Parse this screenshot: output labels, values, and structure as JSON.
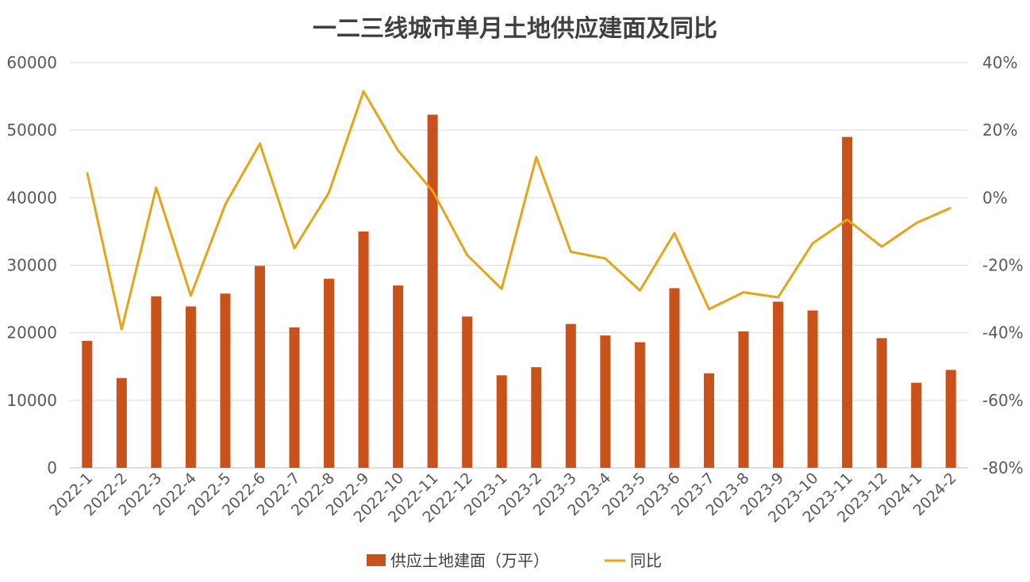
{
  "chart_data": {
    "type": "bar",
    "title": "一二三线城市单月土地供应建面及同比",
    "categories": [
      "2022-1",
      "2022-2",
      "2022-3",
      "2022-4",
      "2022-5",
      "2022-6",
      "2022-7",
      "2022-8",
      "2022-9",
      "2022-10",
      "2022-11",
      "2022-12",
      "2023-1",
      "2023-2",
      "2023-3",
      "2023-4",
      "2023-5",
      "2023-6",
      "2023-7",
      "2023-8",
      "2023-9",
      "2023-10",
      "2023-11",
      "2023-12",
      "2024-1",
      "2024-2"
    ],
    "left_axis": {
      "ylim": [
        0,
        60000
      ],
      "ticks": [
        "0",
        "10000",
        "20000",
        "30000",
        "40000",
        "50000",
        "60000"
      ]
    },
    "right_axis": {
      "ylim": [
        -80,
        40
      ],
      "ticks": [
        "-80%",
        "-60%",
        "-40%",
        "-20%",
        "0%",
        "20%",
        "40%"
      ]
    },
    "series": [
      {
        "name": "供应土地建面（万平）",
        "type": "bar",
        "axis": "left",
        "color": "#C9511A",
        "values": [
          18800,
          13300,
          25400,
          23900,
          25800,
          29900,
          20800,
          28000,
          35000,
          27000,
          52300,
          22400,
          13700,
          14900,
          21300,
          19600,
          18600,
          26600,
          14000,
          20200,
          24600,
          23300,
          49000,
          19200,
          12600,
          14500
        ]
      },
      {
        "name": "同比",
        "type": "line",
        "axis": "right",
        "color": "#E8A317",
        "values": [
          7.5,
          -39,
          3,
          -29,
          -2,
          16,
          -15,
          1.5,
          31.5,
          14,
          2,
          -17,
          -27,
          12,
          -16,
          -18,
          -27.5,
          -10.5,
          -33,
          -28,
          -29.5,
          -13.5,
          -6.5,
          -14.5,
          -7.5,
          -3
        ]
      }
    ],
    "legend_position": "bottom",
    "grid": true
  }
}
